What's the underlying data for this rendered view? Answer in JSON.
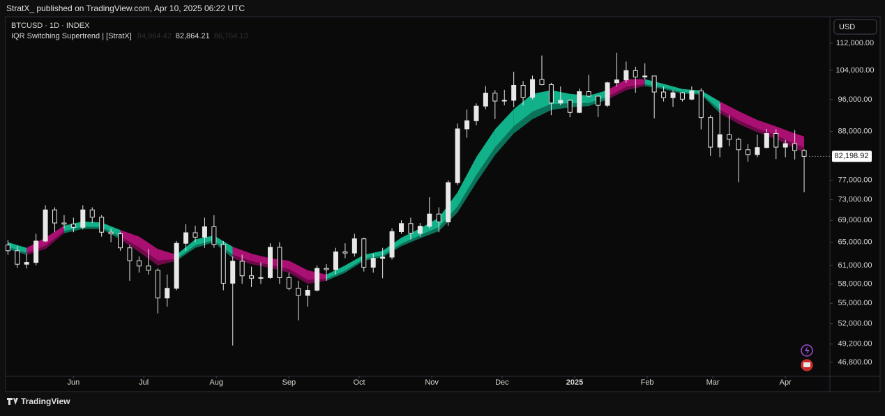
{
  "header": {
    "publisher": "StratX_ published on TradingView.com, Apr 10, 2025 06:22 UTC",
    "footer": "TradingView"
  },
  "chart_data": {
    "type": "candlestick",
    "symbol": "BTCUSD · 1D · INDEX",
    "indicator": "IQR Switching Supertrend | [StratX]",
    "indicator_readout": {
      "values": [
        84964.42,
        82864.21,
        86764.13
      ],
      "value_labels": [
        "84,964.42",
        "82,864.21",
        "86,764.13"
      ]
    },
    "currency": "USD",
    "log_scale": true,
    "grid": false,
    "candle_color": "#e8e8e8",
    "x": [
      0,
      4,
      8,
      12,
      16,
      20,
      24,
      28,
      32,
      36,
      40,
      44,
      48,
      52,
      56,
      60,
      64,
      68,
      72,
      76,
      80,
      84,
      88,
      92,
      96,
      100,
      104,
      108,
      112,
      116,
      120,
      124,
      128,
      132,
      136,
      140,
      144,
      148,
      152,
      156,
      160,
      164,
      168,
      172,
      176,
      180,
      184,
      188,
      192,
      196,
      200,
      204,
      208,
      212,
      216,
      220,
      224,
      228,
      232,
      236,
      240,
      244,
      248,
      252,
      256,
      260,
      264,
      268,
      272,
      276,
      280,
      284,
      288,
      292,
      296,
      300,
      304,
      308,
      312,
      316,
      320,
      324,
      328,
      332,
      336,
      340
    ],
    "open": [
      64500,
      63500,
      61200,
      61500,
      65200,
      71000,
      68500,
      68300,
      67700,
      71000,
      69600,
      66800,
      66500,
      64000,
      61800,
      60900,
      60200,
      55800,
      57300,
      64800,
      66700,
      65900,
      67800,
      64600,
      58100,
      61700,
      59300,
      58900,
      59000,
      64100,
      59000,
      57300,
      56200,
      57000,
      60500,
      60300,
      63300,
      63100,
      65600,
      60700,
      62200,
      62400,
      66900,
      68400,
      66600,
      67900,
      70200,
      68700,
      76500,
      88600,
      90600,
      94300,
      97700,
      95600,
      95800,
      99800,
      96600,
      101400,
      100000,
      95100,
      95800,
      92700,
      98100,
      96900,
      94500,
      100500,
      101300,
      103900,
      102100,
      102400,
      98000,
      96500,
      97800,
      96100,
      98300,
      91400,
      84300,
      87200,
      86100,
      83700,
      82600,
      84200,
      87500,
      84300,
      85100,
      83500
    ],
    "high": [
      65400,
      64300,
      63000,
      66500,
      71900,
      71500,
      70000,
      69500,
      71900,
      71500,
      70000,
      67500,
      66800,
      64500,
      62500,
      63800,
      60500,
      59500,
      65200,
      68300,
      68000,
      69500,
      70000,
      65200,
      62500,
      62800,
      60800,
      61500,
      64800,
      65000,
      59800,
      58500,
      57800,
      61000,
      61200,
      64000,
      64800,
      66500,
      65800,
      63000,
      64000,
      67500,
      69000,
      69500,
      68500,
      73500,
      71500,
      77000,
      89900,
      93400,
      95000,
      99600,
      98500,
      98600,
      103600,
      101000,
      102500,
      108300,
      100500,
      99500,
      96000,
      98900,
      102700,
      97000,
      100800,
      109100,
      106500,
      105000,
      106000,
      102500,
      99500,
      98500,
      98000,
      99500,
      99000,
      92000,
      95000,
      92000,
      86500,
      85000,
      87200,
      88600,
      88500,
      86000,
      88300,
      83800
    ],
    "low": [
      62800,
      60600,
      60500,
      61000,
      65000,
      66800,
      67500,
      66800,
      67300,
      68500,
      66000,
      65000,
      63500,
      58500,
      59800,
      59500,
      53500,
      54500,
      57000,
      63500,
      65000,
      64000,
      64000,
      57000,
      49000,
      58000,
      57500,
      58000,
      58800,
      58000,
      57000,
      52500,
      54500,
      56800,
      58500,
      59500,
      62200,
      62500,
      60000,
      59800,
      58900,
      62000,
      66500,
      65500,
      66000,
      67500,
      66800,
      68000,
      76000,
      86500,
      89500,
      93500,
      91000,
      94500,
      94000,
      94500,
      96000,
      99800,
      92000,
      94500,
      91500,
      92500,
      96500,
      91500,
      94000,
      99500,
      100500,
      97800,
      101500,
      91200,
      95500,
      94100,
      95500,
      95800,
      88500,
      82300,
      82000,
      84500,
      76600,
      81000,
      82000,
      84000,
      81600,
      82000,
      81500,
      74500
    ],
    "close": [
      63500,
      61200,
      61500,
      65200,
      71000,
      68500,
      68300,
      67700,
      71000,
      69600,
      66800,
      66500,
      64000,
      61800,
      60900,
      60200,
      55800,
      57300,
      64800,
      66700,
      65900,
      67800,
      64600,
      58100,
      61700,
      59300,
      58900,
      59000,
      64100,
      59000,
      57300,
      56200,
      57000,
      60500,
      60300,
      63300,
      63100,
      65600,
      60700,
      62200,
      62400,
      66900,
      68400,
      66600,
      67900,
      70200,
      68700,
      76500,
      88600,
      90600,
      94300,
      97700,
      95600,
      95800,
      99800,
      96600,
      101400,
      100000,
      95100,
      95800,
      92700,
      98100,
      96900,
      94500,
      100500,
      101300,
      103900,
      102100,
      102400,
      98000,
      96500,
      97800,
      96100,
      98300,
      91400,
      84300,
      87200,
      86100,
      83700,
      82600,
      84200,
      87500,
      84300,
      85100,
      83500,
      82198.92
    ],
    "ribbon": {
      "x": [
        0,
        8,
        16,
        24,
        32,
        40,
        48,
        56,
        64,
        72,
        80,
        88,
        96,
        104,
        112,
        120,
        128,
        136,
        144,
        152,
        160,
        168,
        176,
        184,
        192,
        200,
        208,
        216,
        224,
        232,
        240,
        248,
        256,
        264,
        272,
        280,
        288,
        296,
        304,
        312,
        320,
        328,
        336,
        340
      ],
      "upper": [
        65000,
        64000,
        65800,
        68000,
        68800,
        68600,
        67200,
        66000,
        63800,
        62800,
        65500,
        66200,
        64200,
        63000,
        62200,
        61800,
        60200,
        59500,
        61000,
        62800,
        63500,
        65800,
        67500,
        69500,
        74500,
        82000,
        88500,
        93500,
        97500,
        98500,
        97500,
        97000,
        98500,
        101500,
        101500,
        100200,
        98800,
        98400,
        95500,
        93000,
        90800,
        89200,
        87500,
        86800
      ],
      "lower": [
        63800,
        62800,
        63800,
        66600,
        67400,
        67400,
        65500,
        63300,
        61000,
        61800,
        64000,
        65000,
        62200,
        61200,
        60600,
        59800,
        58000,
        58500,
        59800,
        61800,
        62400,
        64300,
        65700,
        67000,
        70500,
        76500,
        82500,
        87500,
        91000,
        93300,
        94000,
        94300,
        96000,
        98500,
        99600,
        98800,
        97600,
        97300,
        92500,
        89800,
        87800,
        86200,
        84000,
        83200
      ],
      "bullish": [
        true,
        false,
        false,
        true,
        true,
        true,
        false,
        false,
        false,
        true,
        true,
        true,
        false,
        false,
        false,
        false,
        false,
        true,
        true,
        true,
        true,
        true,
        true,
        true,
        true,
        true,
        true,
        true,
        true,
        true,
        true,
        true,
        false,
        false,
        true,
        true,
        true,
        true,
        false,
        false,
        false,
        false,
        false,
        false
      ],
      "bull_color": "#12c096",
      "bear_color": "#b8107c"
    },
    "last_price": 82198.92,
    "last_price_label": "82,198.92",
    "xlim": [
      -1,
      351
    ],
    "xticks": [
      {
        "value": 28,
        "label": "Jun"
      },
      {
        "value": 58,
        "label": "Jul"
      },
      {
        "value": 89,
        "label": "Aug"
      },
      {
        "value": 120,
        "label": "Sep"
      },
      {
        "value": 150,
        "label": "Oct"
      },
      {
        "value": 181,
        "label": "Nov"
      },
      {
        "value": 211,
        "label": "Dec"
      },
      {
        "value": 242,
        "label": "2025"
      },
      {
        "value": 273,
        "label": "Feb"
      },
      {
        "value": 301,
        "label": "Mar"
      },
      {
        "value": 332,
        "label": "Apr"
      }
    ],
    "ylim": [
      45050,
      120400
    ],
    "yticks": [
      {
        "value": 46800,
        "label": "46,800.00"
      },
      {
        "value": 49200,
        "label": "49,200.00"
      },
      {
        "value": 52000,
        "label": "52,000.00"
      },
      {
        "value": 55000,
        "label": "55,000.00"
      },
      {
        "value": 58000,
        "label": "58,000.00"
      },
      {
        "value": 61000,
        "label": "61,000.00"
      },
      {
        "value": 65000,
        "label": "65,000.00"
      },
      {
        "value": 69000,
        "label": "69,000.00"
      },
      {
        "value": 73000,
        "label": "73,000.00"
      },
      {
        "value": 77000,
        "label": "77,000.00"
      },
      {
        "value": 88000,
        "label": "88,000.00"
      },
      {
        "value": 96000,
        "label": "96,000.00"
      },
      {
        "value": 104000,
        "label": "104,000.00"
      },
      {
        "value": 112000,
        "label": "112,000.00"
      }
    ]
  }
}
